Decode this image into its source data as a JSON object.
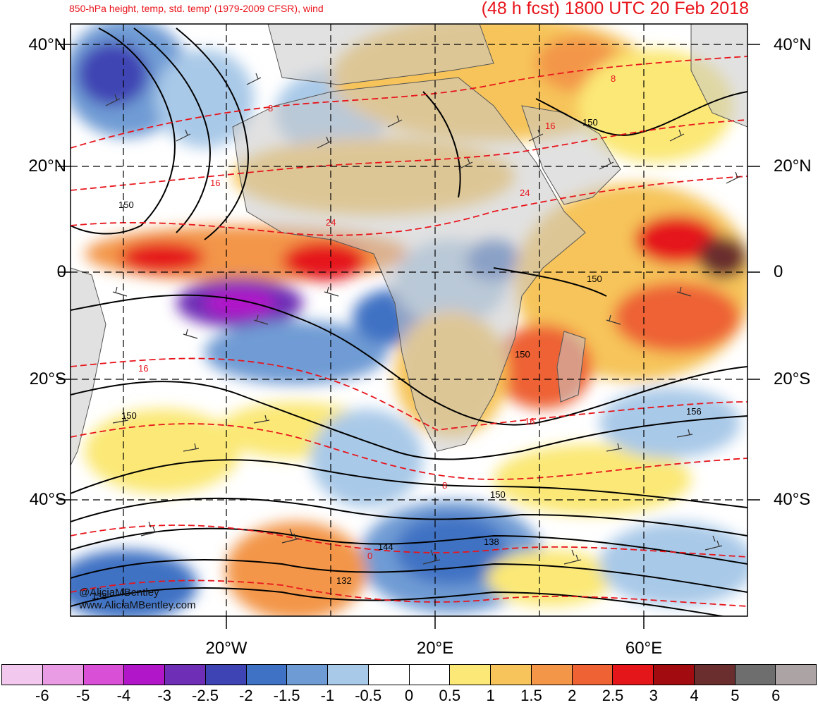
{
  "header": {
    "title_left": "850-hPa height, temp, std. temp' (1979-2009 CFSR), wind",
    "title_right": "(48 h fcst) 1800 UTC 20 Feb 2018"
  },
  "axes": {
    "lat_labels": [
      "40°N",
      "20°N",
      "0",
      "20°S",
      "40°S"
    ],
    "lon_labels": [
      "20°W",
      "20°E",
      "60°E"
    ]
  },
  "credits": {
    "handle": "@AliciaMBentley",
    "site": "www.AliciaMBentley.com"
  },
  "contour_labels": {
    "height": [
      "150",
      "150",
      "150",
      "150",
      "150",
      "156",
      "150",
      "144",
      "138",
      "132",
      "138"
    ],
    "temperature": [
      "8",
      "16",
      "24",
      "8",
      "16",
      "16",
      "24",
      "0",
      "8",
      "16"
    ]
  },
  "legend": {
    "tick_labels": [
      "-6",
      "-5",
      "-4",
      "-3",
      "-2.5",
      "-2",
      "-1.5",
      "-1",
      "-0.5",
      "0",
      "0.5",
      "1",
      "1.5",
      "2",
      "2.5",
      "3",
      "4",
      "5",
      "6"
    ],
    "colors": [
      "#f2c8ee",
      "#e99be3",
      "#d94fd6",
      "#b117c9",
      "#6e2fb6",
      "#3f44b4",
      "#3f72c4",
      "#6f9bd4",
      "#a9c9e8",
      "#ffffff",
      "#ffffff",
      "#fbe876",
      "#f6c45a",
      "#f39648",
      "#ee6234",
      "#e5161a",
      "#a20c10",
      "#6b2e2e",
      "#6e6e6e",
      "#aca4a4"
    ]
  },
  "colors": {
    "land": "#c8c8c8",
    "height_contour": "#000000",
    "temp_contour": "#e8141b"
  }
}
